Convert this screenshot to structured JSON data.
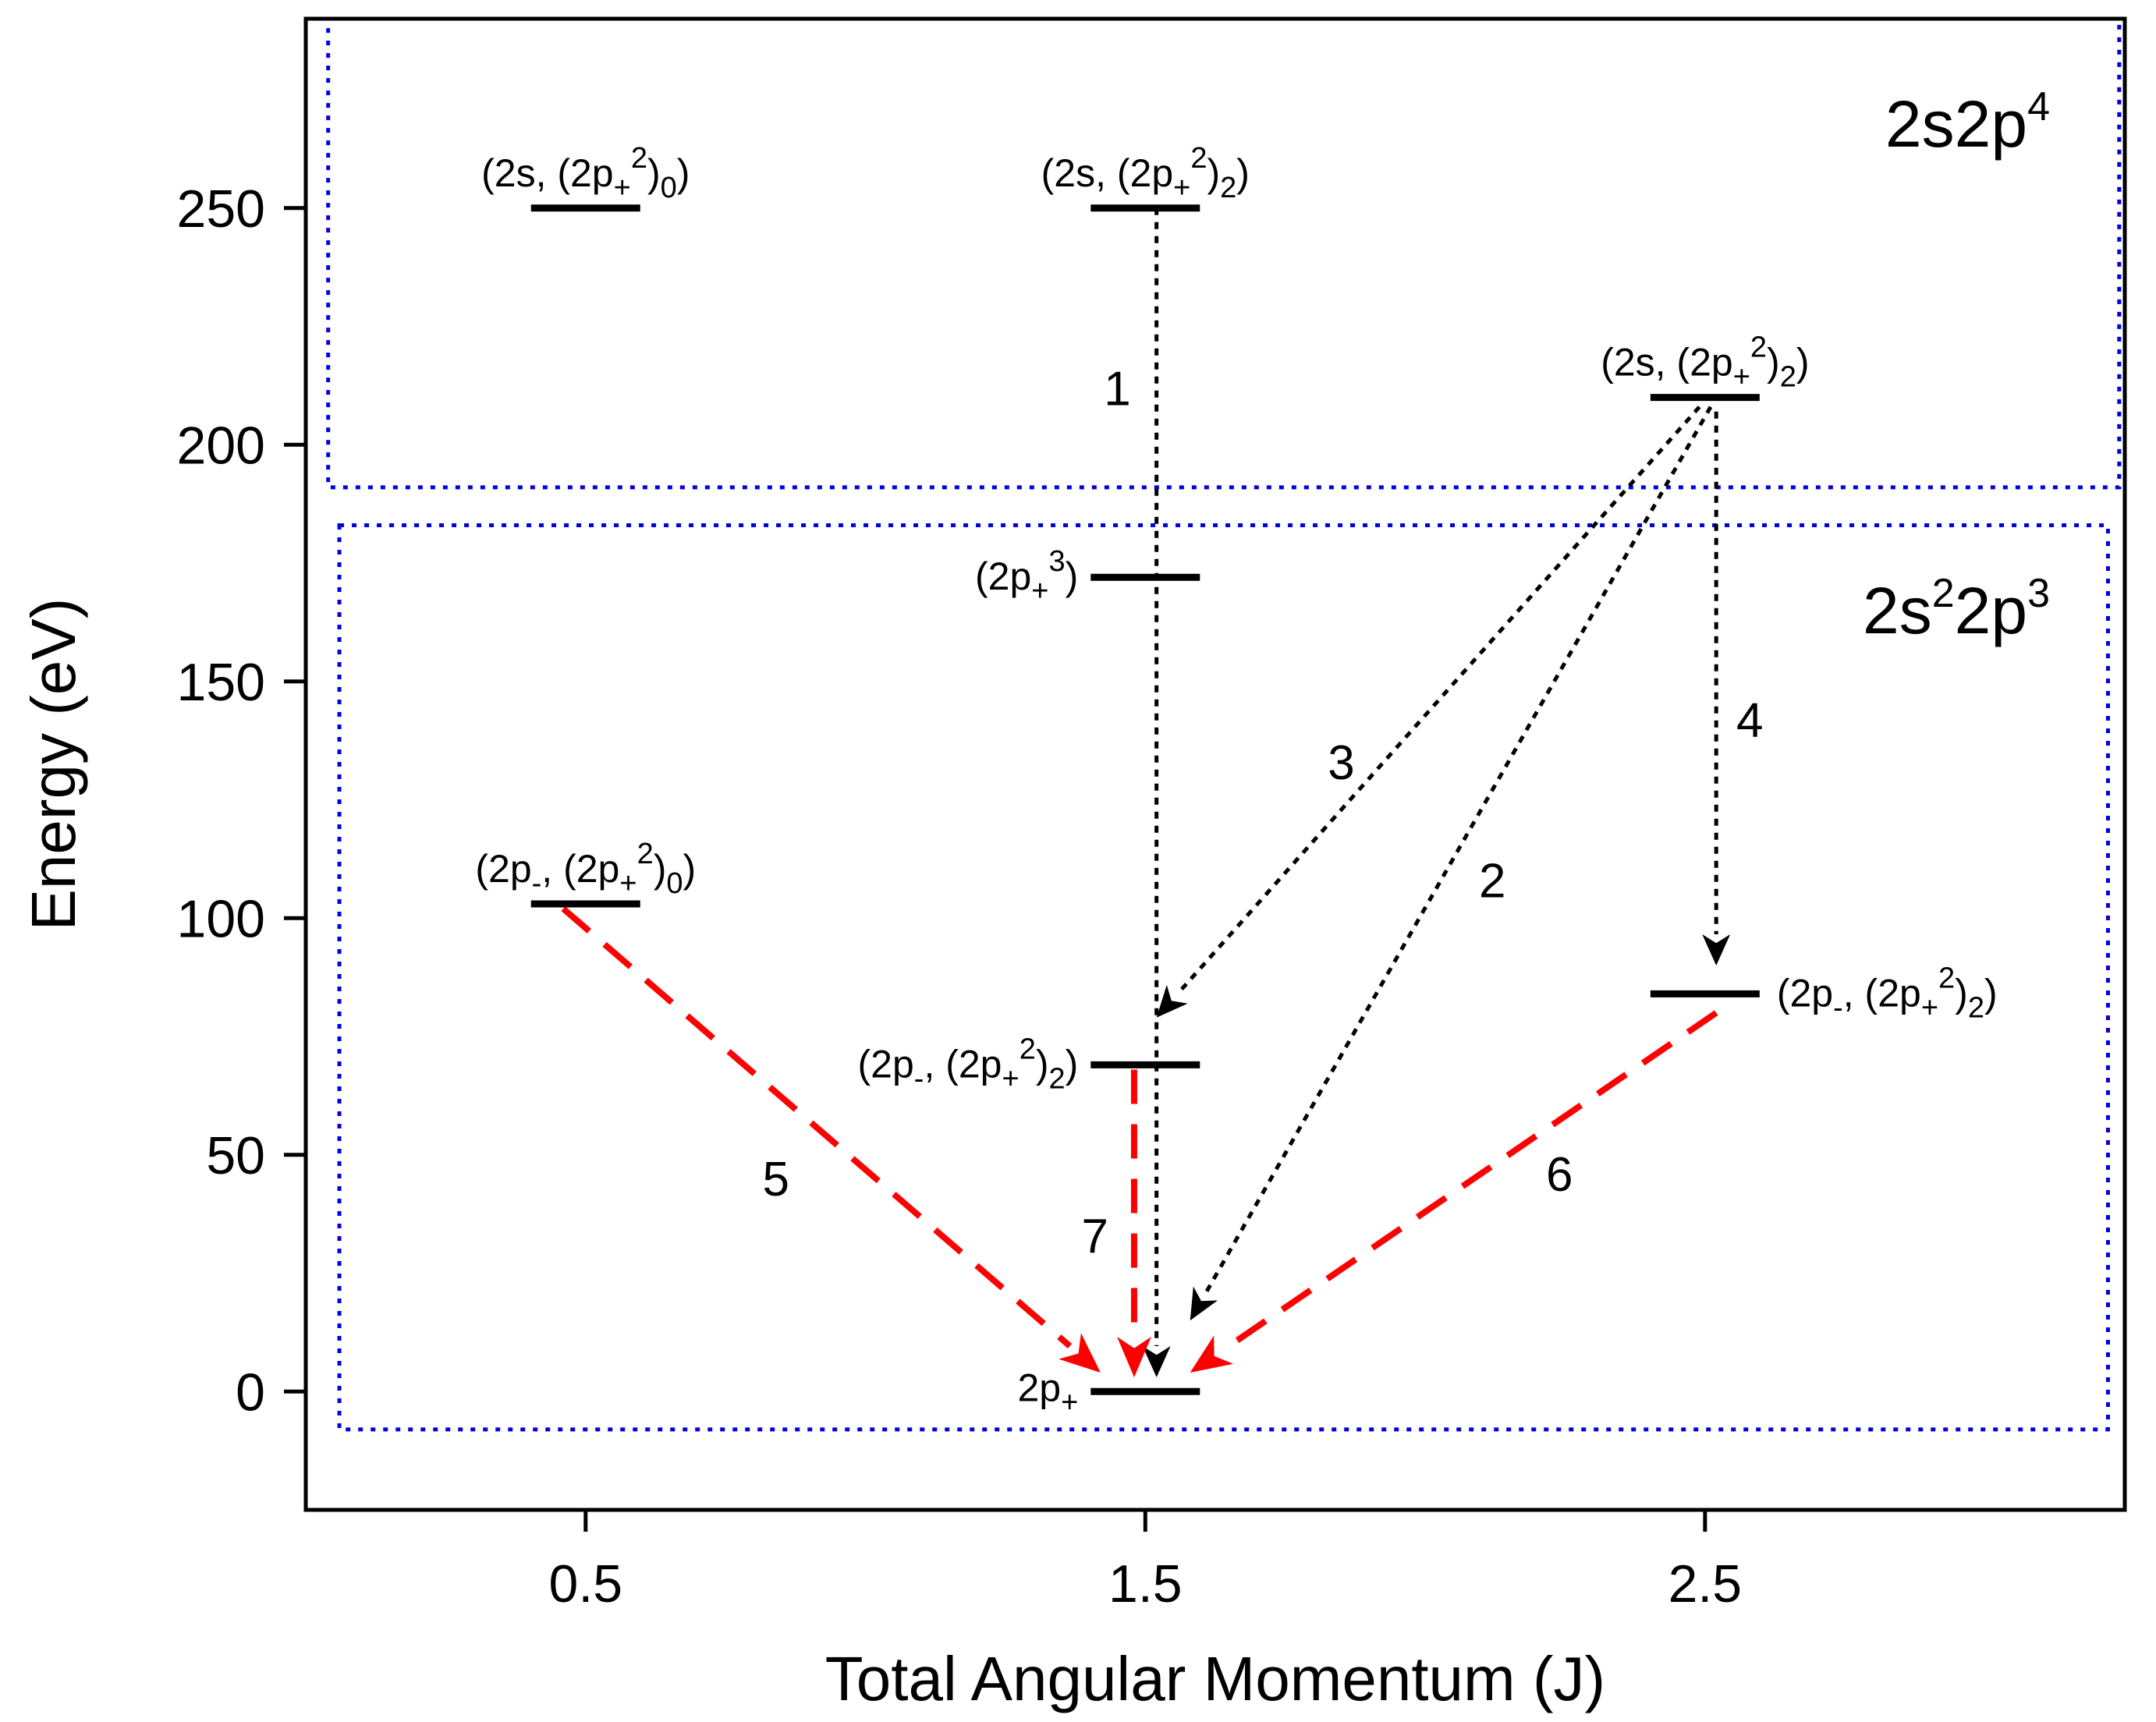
{
  "chart_data": {
    "type": "energy-level-diagram",
    "xlabel": "Total Angular Momentum (J)",
    "ylabel": "Energy (eV)",
    "xlim": [
      0.0,
      3.25
    ],
    "ylim": [
      -25,
      290
    ],
    "xticks": [
      0.5,
      1.5,
      2.5
    ],
    "xtick_labels": [
      "0.5",
      "1.5",
      "2.5"
    ],
    "yticks": [
      0,
      50,
      100,
      150,
      200,
      250
    ],
    "ytick_labels": [
      "0",
      "50",
      "100",
      "150",
      "200",
      "250"
    ],
    "regions": [
      {
        "id": "upper",
        "label": "2s2p",
        "label_sup": "4",
        "color": "#0000e0",
        "x_range": [
          0.04,
          3.24
        ],
        "y_range": [
          191,
          290
        ]
      },
      {
        "id": "lower",
        "label_parts": [
          "2s",
          "2",
          "2p",
          "3"
        ],
        "color": "#0000e0",
        "x_range": [
          0.06,
          3.22
        ],
        "y_range": [
          -8,
          183
        ]
      }
    ],
    "levels": [
      {
        "id": "L1",
        "j": 0.5,
        "energy": 250,
        "label": "(2s, (2p+2)0)",
        "parts": [
          [
            "(2s, (2p",
            "n"
          ],
          [
            "+",
            "sub"
          ],
          [
            "2",
            "sup"
          ],
          [
            ")",
            "n"
          ],
          [
            "0",
            "sub"
          ],
          [
            ")",
            "n"
          ]
        ],
        "label_side": "top"
      },
      {
        "id": "L2",
        "j": 1.5,
        "energy": 250,
        "label": "(2s, (2p+2)2)",
        "parts": [
          [
            "(2s, (2p",
            "n"
          ],
          [
            "+",
            "sub"
          ],
          [
            "2",
            "sup"
          ],
          [
            ")",
            "n"
          ],
          [
            "2",
            "sub"
          ],
          [
            ")",
            "n"
          ]
        ],
        "label_side": "top"
      },
      {
        "id": "L3",
        "j": 2.5,
        "energy": 210,
        "label": "(2s, (2p+2)2)",
        "parts": [
          [
            "(2s, (2p",
            "n"
          ],
          [
            "+",
            "sub"
          ],
          [
            "2",
            "sup"
          ],
          [
            ")",
            "n"
          ],
          [
            "2",
            "sub"
          ],
          [
            ")",
            "n"
          ]
        ],
        "label_side": "top"
      },
      {
        "id": "L4",
        "j": 1.5,
        "energy": 172,
        "label": "(2p+3)",
        "parts": [
          [
            "(2p",
            "n"
          ],
          [
            "+",
            "sub"
          ],
          [
            "3",
            "sup"
          ],
          [
            ")",
            "n"
          ]
        ],
        "label_side": "left"
      },
      {
        "id": "L5",
        "j": 0.5,
        "energy": 103,
        "label": "(2p-, (2p+2)0)",
        "parts": [
          [
            "(2p",
            "n"
          ],
          [
            "-",
            "sub"
          ],
          [
            ", (2p",
            "n"
          ],
          [
            "+",
            "sub"
          ],
          [
            "2",
            "sup"
          ],
          [
            ")",
            "n"
          ],
          [
            "0",
            "sub"
          ],
          [
            ")",
            "n"
          ]
        ],
        "label_side": "top"
      },
      {
        "id": "L6",
        "j": 2.5,
        "energy": 84,
        "label": "(2p-, (2p+2)2)",
        "parts": [
          [
            "(2p",
            "n"
          ],
          [
            "-",
            "sub"
          ],
          [
            ", (2p",
            "n"
          ],
          [
            "+",
            "sub"
          ],
          [
            "2",
            "sup"
          ],
          [
            ")",
            "n"
          ],
          [
            "2",
            "sub"
          ],
          [
            ")",
            "n"
          ]
        ],
        "label_side": "right"
      },
      {
        "id": "L7",
        "j": 1.5,
        "energy": 69,
        "label": "(2p-, (2p+2)2)",
        "parts": [
          [
            "(2p",
            "n"
          ],
          [
            "-",
            "sub"
          ],
          [
            ", (2p",
            "n"
          ],
          [
            "+",
            "sub"
          ],
          [
            "2",
            "sup"
          ],
          [
            ")",
            "n"
          ],
          [
            "2",
            "sub"
          ],
          [
            ")",
            "n"
          ]
        ],
        "label_side": "left"
      },
      {
        "id": "L8",
        "j": 1.5,
        "energy": 0,
        "label": "2p+",
        "parts": [
          [
            "2p",
            "n"
          ],
          [
            "+",
            "sub"
          ]
        ],
        "label_side": "left"
      }
    ],
    "transitions": [
      {
        "label": "1",
        "from": [
          1.52,
          250
        ],
        "to": [
          1.52,
          3
        ],
        "style": "dotted",
        "color": "#000000",
        "label_pos": [
          1.45,
          212
        ]
      },
      {
        "label": "2",
        "from": [
          2.51,
          208
        ],
        "to": [
          1.58,
          15
        ],
        "style": "dotted",
        "color": "#000000",
        "label_pos": [
          2.12,
          108
        ]
      },
      {
        "label": "3",
        "from": [
          2.49,
          208
        ],
        "to": [
          1.52,
          79
        ],
        "style": "dotted",
        "color": "#000000",
        "label_pos": [
          1.85,
          133
        ]
      },
      {
        "label": "4",
        "from": [
          2.52,
          207
        ],
        "to": [
          2.52,
          90
        ],
        "style": "dotted",
        "color": "#000000",
        "label_pos": [
          2.58,
          142
        ]
      },
      {
        "label": "5",
        "from": [
          0.46,
          102
        ],
        "to": [
          1.42,
          4
        ],
        "style": "dashed",
        "color": "#ff0000",
        "label_pos": [
          0.84,
          45
        ]
      },
      {
        "label": "6",
        "from": [
          2.52,
          80
        ],
        "to": [
          1.58,
          4
        ],
        "style": "dashed",
        "color": "#ff0000",
        "label_pos": [
          2.24,
          46
        ]
      },
      {
        "label": "7",
        "from": [
          1.48,
          68
        ],
        "to": [
          1.48,
          3
        ],
        "style": "dashed",
        "color": "#ff0000",
        "label_pos": [
          1.41,
          33
        ]
      }
    ]
  }
}
